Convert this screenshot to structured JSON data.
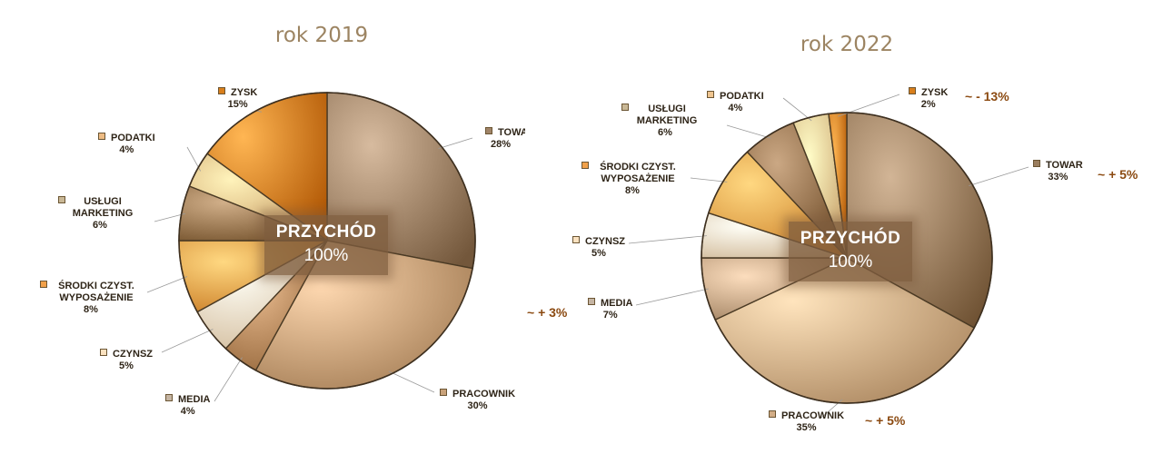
{
  "chart_data": [
    {
      "type": "pie",
      "title": "rok 2019",
      "center_label": "PRZYCHÓD",
      "center_value": "100%",
      "slices": [
        {
          "label": "TOWAR",
          "value": 28,
          "pct": "28%",
          "color": "#a08468"
        },
        {
          "label": "PRACOWNIK",
          "value": 30,
          "pct": "30%",
          "color": "#c9a27a"
        },
        {
          "label": "MEDIA",
          "value": 4,
          "pct": "4%",
          "color": "#b88a5e"
        },
        {
          "label": "CZYNSZ",
          "value": 5,
          "pct": "5%",
          "color": "#fbe2c0"
        },
        {
          "label": "ŚRODKI CZYST. WYPOSAŻENIE",
          "value": 8,
          "pct": "8%",
          "color": "#f2a14a"
        },
        {
          "label": "USŁUGI MARKETING",
          "value": 6,
          "pct": "6%",
          "color": "#9a7852"
        },
        {
          "label": "PODATKI",
          "value": 4,
          "pct": "4%",
          "color": "#eebc84"
        },
        {
          "label": "ZYSK",
          "value": 15,
          "pct": "15%",
          "color": "#d97f1c"
        }
      ]
    },
    {
      "type": "pie",
      "title": "rok 2022",
      "center_label": "PRZYCHÓD",
      "center_value": "100%",
      "slices": [
        {
          "label": "TOWAR",
          "value": 33,
          "pct": "33%",
          "color": "#9b7e5f",
          "change": "~ + 5%"
        },
        {
          "label": "PRACOWNIK",
          "value": 35,
          "pct": "35%",
          "color": "#d2ad86",
          "change": "~ + 5%"
        },
        {
          "label": "MEDIA",
          "value": 7,
          "pct": "7%",
          "color": "#c5a686",
          "change": "~ + 3%"
        },
        {
          "label": "CZYNSZ",
          "value": 5,
          "pct": "5%",
          "color": "#fbe2c0"
        },
        {
          "label": "ŚRODKI CZYST. WYPOSAŻENIE",
          "value": 8,
          "pct": "8%",
          "color": "#f2a14a"
        },
        {
          "label": "USŁUGI MARKETING",
          "value": 6,
          "pct": "6%",
          "color": "#94714d"
        },
        {
          "label": "PODATKI",
          "value": 4,
          "pct": "4%",
          "color": "#efc590"
        },
        {
          "label": "ZYSK",
          "value": 2,
          "pct": "2%",
          "color": "#d97f1c",
          "change": "~ - 13%"
        }
      ]
    }
  ]
}
